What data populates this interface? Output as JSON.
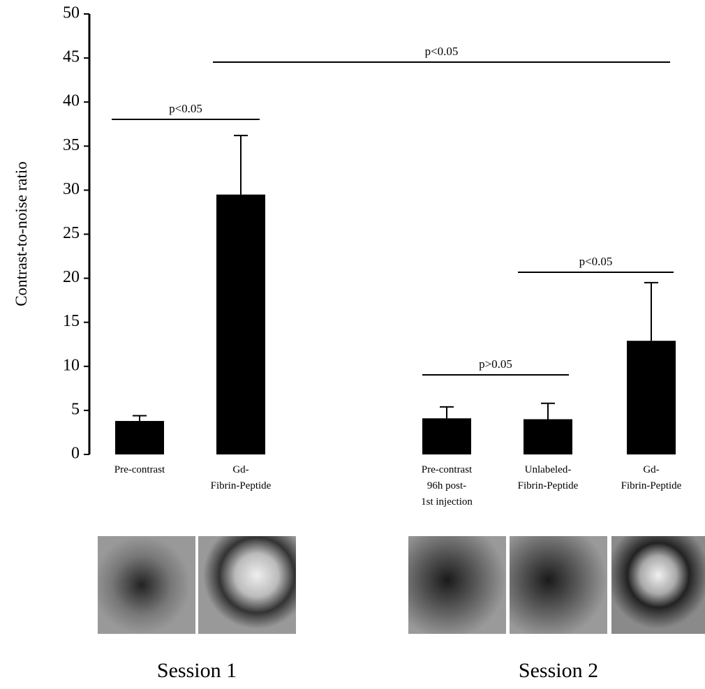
{
  "chart_data": {
    "type": "bar",
    "y_label": "Contrast-to-noise ratio",
    "categories": [
      [
        "Pre-contrast"
      ],
      [
        "Gd-",
        "Fibrin-Peptide"
      ],
      [
        "Pre-contrast",
        "96h post-",
        "1st injection"
      ],
      [
        "Unlabeled-",
        "Fibrin-Peptide"
      ],
      [
        "Gd-",
        "Fibrin-Peptide"
      ]
    ],
    "values": [
      3.8,
      29.5,
      4.1,
      4.0,
      12.9
    ],
    "errors": [
      0.6,
      6.7,
      1.3,
      1.8,
      6.6
    ],
    "color": "#000000",
    "ylim": [
      0,
      50
    ],
    "yticks": [
      0,
      5,
      10,
      15,
      20,
      25,
      30,
      35,
      40,
      45,
      50
    ],
    "annotations": [
      "p<0.05",
      "p<0.05",
      "p<0.05",
      "p>0.05"
    ],
    "group_labels": [
      "Session 1",
      "Session 2"
    ]
  }
}
